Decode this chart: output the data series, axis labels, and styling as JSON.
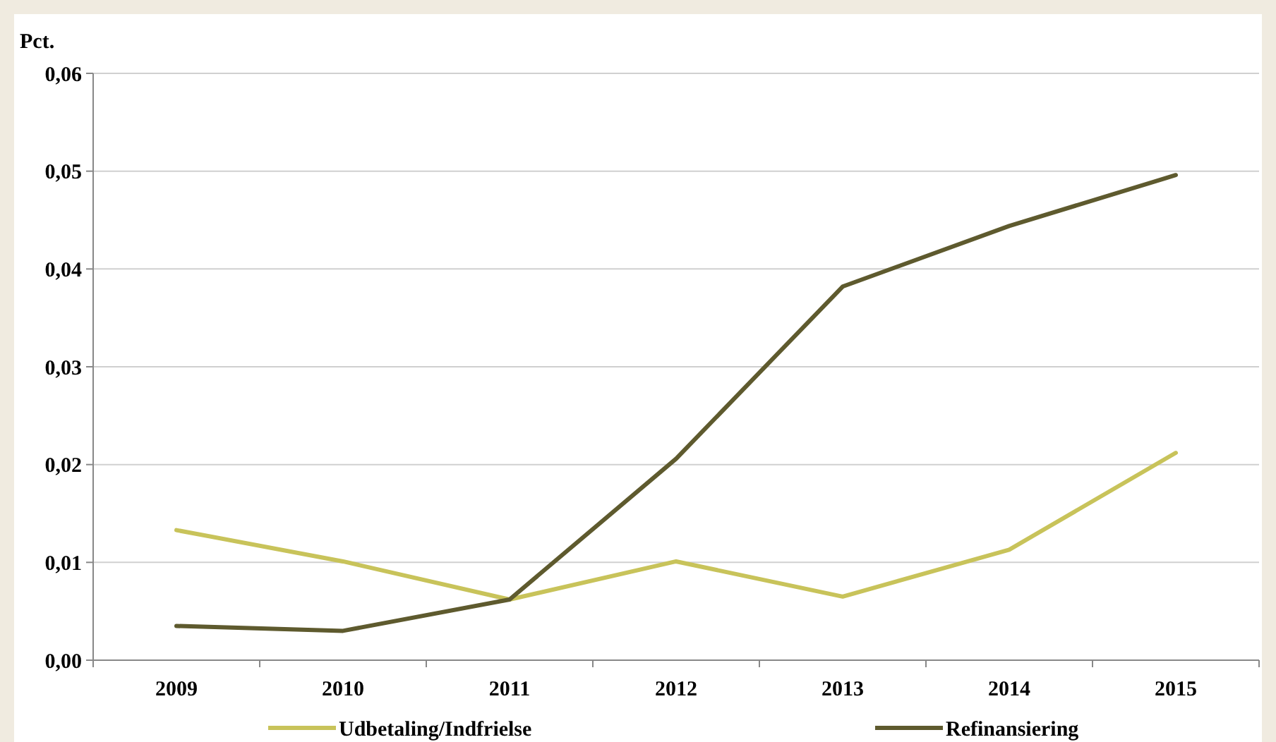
{
  "chart_data": {
    "type": "line",
    "ylabel": "Pct.",
    "categories": [
      "2009",
      "2010",
      "2011",
      "2012",
      "2013",
      "2014",
      "2015"
    ],
    "series": [
      {
        "name": "Udbetaling/Indfrielse",
        "color": "#c8c35a",
        "values": [
          0.0133,
          0.0101,
          0.0062,
          0.0101,
          0.0065,
          0.0113,
          0.0212
        ]
      },
      {
        "name": "Refinansiering",
        "color": "#5e5a2e",
        "values": [
          0.0035,
          0.003,
          0.0062,
          0.0206,
          0.0382,
          0.0444,
          0.0496
        ]
      }
    ],
    "ylim": [
      0,
      0.06
    ],
    "yticks": [
      {
        "value": 0,
        "label": "0,00"
      },
      {
        "value": 0.01,
        "label": "0,01"
      },
      {
        "value": 0.02,
        "label": "0,02"
      },
      {
        "value": 0.03,
        "label": "0,03"
      },
      {
        "value": 0.04,
        "label": "0,04"
      },
      {
        "value": 0.05,
        "label": "0,05"
      },
      {
        "value": 0.06,
        "label": "0,06"
      }
    ],
    "grid": "y",
    "legend": "bottom",
    "marker": "none",
    "line_style": "solid"
  }
}
